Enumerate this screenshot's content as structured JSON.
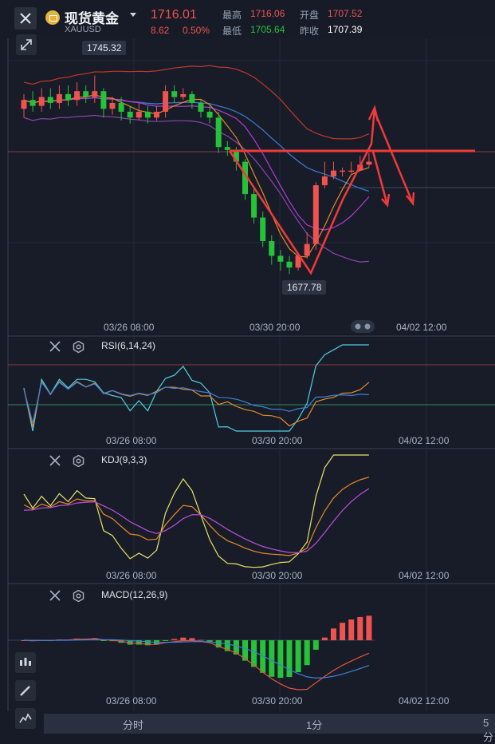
{
  "header": {
    "name": "现货黄金",
    "code": "XAUUSD",
    "price": "1716.01",
    "change": "8.62",
    "change_pct": "0.50%",
    "stats": [
      {
        "label": "最高",
        "value": "1716.06",
        "color": "#ef5350"
      },
      {
        "label": "开盘",
        "value": "1707.52",
        "color": "#ef5350"
      },
      {
        "label": "最低",
        "value": "1705.64",
        "color": "#26a69a"
      },
      {
        "label": "昨收",
        "value": "1707.39",
        "color": "#ffffff"
      }
    ]
  },
  "main_chart": {
    "high_label": "1745.32",
    "low_label": "1677.78",
    "x_labels": [
      "03/26 08:00",
      "03/30 20:00",
      "04/02 12:00"
    ]
  },
  "indicators": [
    {
      "title": "RSI(6,14,24)",
      "x_labels": [
        "03/26 08:00",
        "03/30 20:00",
        "04/02 12:00"
      ]
    },
    {
      "title": "KDJ(9,3,3)",
      "x_labels": [
        "03/26 08:00",
        "03/30 20:00",
        "04/02 12:00"
      ]
    },
    {
      "title": "MACD(12,26,9)",
      "x_labels": [
        "03/26 08:00",
        "03/30 20:00",
        "04/02 12:00"
      ]
    }
  ],
  "bottom_tabs": [
    "分时",
    "1分",
    "5分"
  ],
  "colors": {
    "up": "#ef5350",
    "down": "#26c23a",
    "bg": "#161b27"
  },
  "chart_data": {
    "type": "candlestick",
    "symbol": "XAUUSD",
    "x": [
      "03/26 08:00",
      "03/30 20:00",
      "04/02 12:00"
    ],
    "candles": [
      {
        "o": 1734,
        "c": 1737,
        "h": 1739,
        "l": 1731
      },
      {
        "o": 1737,
        "c": 1735,
        "h": 1740,
        "l": 1733
      },
      {
        "o": 1735,
        "c": 1738,
        "h": 1741,
        "l": 1733
      },
      {
        "o": 1738,
        "c": 1736,
        "h": 1741,
        "l": 1734
      },
      {
        "o": 1736,
        "c": 1739,
        "h": 1742,
        "l": 1734
      },
      {
        "o": 1739,
        "c": 1737,
        "h": 1742,
        "l": 1735
      },
      {
        "o": 1737,
        "c": 1740,
        "h": 1743,
        "l": 1735
      },
      {
        "o": 1740,
        "c": 1738,
        "h": 1742,
        "l": 1736
      },
      {
        "o": 1738,
        "c": 1740,
        "h": 1745.32,
        "l": 1736
      },
      {
        "o": 1740,
        "c": 1734,
        "h": 1741,
        "l": 1731
      },
      {
        "o": 1734,
        "c": 1736,
        "h": 1738,
        "l": 1732
      },
      {
        "o": 1736,
        "c": 1733,
        "h": 1738,
        "l": 1730
      },
      {
        "o": 1733,
        "c": 1731,
        "h": 1735,
        "l": 1729
      },
      {
        "o": 1731,
        "c": 1733,
        "h": 1736,
        "l": 1730
      },
      {
        "o": 1733,
        "c": 1731,
        "h": 1735,
        "l": 1729
      },
      {
        "o": 1731,
        "c": 1733,
        "h": 1735,
        "l": 1730
      },
      {
        "o": 1733,
        "c": 1740,
        "h": 1742,
        "l": 1731
      },
      {
        "o": 1740,
        "c": 1738,
        "h": 1742,
        "l": 1736
      },
      {
        "o": 1738,
        "c": 1739,
        "h": 1741,
        "l": 1737
      },
      {
        "o": 1739,
        "c": 1736,
        "h": 1740,
        "l": 1734
      },
      {
        "o": 1736,
        "c": 1733,
        "h": 1737,
        "l": 1731
      },
      {
        "o": 1733,
        "c": 1731,
        "h": 1735,
        "l": 1729
      },
      {
        "o": 1731,
        "c": 1721,
        "h": 1733,
        "l": 1719
      },
      {
        "o": 1721,
        "c": 1720,
        "h": 1723,
        "l": 1718
      },
      {
        "o": 1720,
        "c": 1716,
        "h": 1721,
        "l": 1713
      },
      {
        "o": 1716,
        "c": 1705,
        "h": 1717,
        "l": 1703
      },
      {
        "o": 1705,
        "c": 1697,
        "h": 1707,
        "l": 1695
      },
      {
        "o": 1697,
        "c": 1689,
        "h": 1699,
        "l": 1687
      },
      {
        "o": 1689,
        "c": 1684,
        "h": 1691,
        "l": 1681
      },
      {
        "o": 1684,
        "c": 1682,
        "h": 1686,
        "l": 1679
      },
      {
        "o": 1682,
        "c": 1680,
        "h": 1684,
        "l": 1677.78
      },
      {
        "o": 1680,
        "c": 1684,
        "h": 1685,
        "l": 1679
      },
      {
        "o": 1684,
        "c": 1688,
        "h": 1692,
        "l": 1683
      },
      {
        "o": 1688,
        "c": 1708,
        "h": 1709,
        "l": 1686
      },
      {
        "o": 1708,
        "c": 1711,
        "h": 1716,
        "l": 1707
      },
      {
        "o": 1711,
        "c": 1713,
        "h": 1716,
        "l": 1710
      },
      {
        "o": 1713,
        "c": 1713,
        "h": 1714,
        "l": 1711
      },
      {
        "o": 1713,
        "c": 1713,
        "h": 1716,
        "l": 1712
      },
      {
        "o": 1713,
        "c": 1715,
        "h": 1718,
        "l": 1713
      },
      {
        "o": 1715,
        "c": 1716.01,
        "h": 1719,
        "l": 1714
      }
    ],
    "indicators": [
      "RSI(6,14,24)",
      "KDJ(9,3,3)",
      "MACD(12,26,9)"
    ]
  }
}
